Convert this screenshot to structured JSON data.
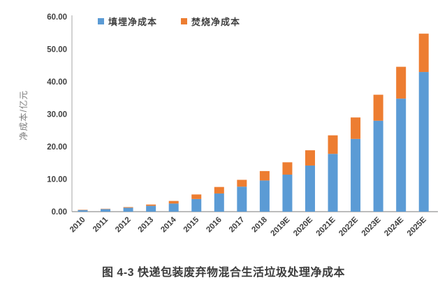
{
  "figure": {
    "caption": "图 4-3 快递包装废弃物混合生活垃圾处理净成本"
  },
  "chart_data": {
    "type": "bar",
    "stacked": true,
    "title": "",
    "xlabel": "",
    "ylabel": "净成本/亿元",
    "ylim": [
      0,
      60
    ],
    "y_ticks": [
      "0.00",
      "10.00",
      "20.00",
      "30.00",
      "40.00",
      "50.00",
      "60.00"
    ],
    "grid": false,
    "legend_position": "top",
    "categories": [
      "2010",
      "2011",
      "2012",
      "2013",
      "2014",
      "2015",
      "2016",
      "2017",
      "2018",
      "2019E",
      "2020E",
      "2021E",
      "2022E",
      "2023E",
      "2024E",
      "2025E"
    ],
    "series": [
      {
        "name": "填埋净成本",
        "color": "#5B9BD5",
        "values": [
          0.5,
          0.8,
          1.2,
          1.8,
          2.5,
          3.9,
          5.6,
          7.7,
          9.6,
          11.4,
          14.2,
          17.8,
          22.4,
          28.0,
          34.8,
          43.0
        ]
      },
      {
        "name": "焚烧净成本",
        "color": "#ED7D31",
        "values": [
          0.1,
          0.1,
          0.2,
          0.4,
          0.8,
          1.4,
          2.0,
          2.1,
          2.9,
          3.8,
          4.7,
          5.7,
          6.6,
          8.0,
          9.8,
          11.8
        ]
      }
    ],
    "totals": [
      0.6,
      0.9,
      1.4,
      2.2,
      3.3,
      5.3,
      7.6,
      9.8,
      12.5,
      15.2,
      18.9,
      23.5,
      29.0,
      36.0,
      44.6,
      54.8
    ]
  },
  "colors": {
    "y_axis_line": "#BFBFBF",
    "x_axis_line": "#A6A6A6",
    "tick_text": "#404040",
    "y_axis_title": "#7F7F7F"
  }
}
